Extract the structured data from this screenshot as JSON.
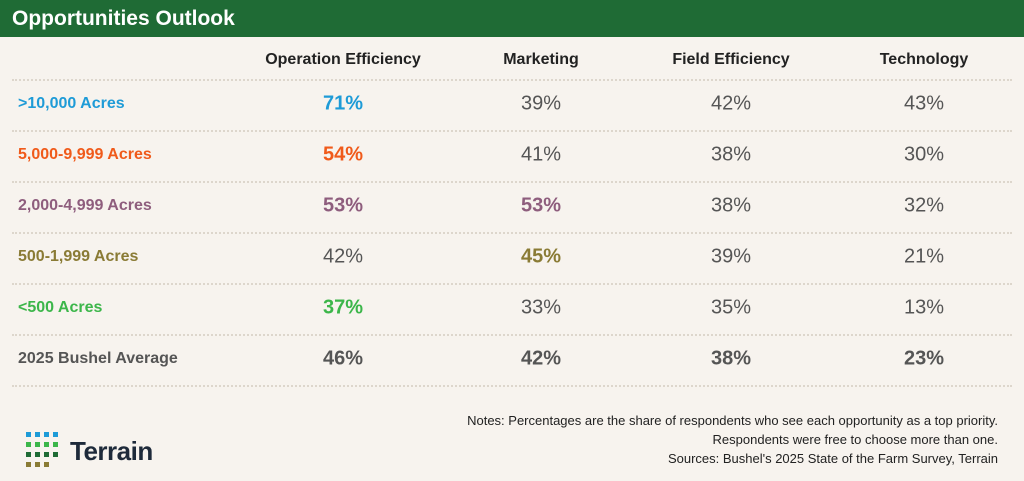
{
  "header": {
    "title": "Opportunities Outlook"
  },
  "table": {
    "columns": [
      "Operation Efficiency",
      "Marketing",
      "Field Efficiency",
      "Technology"
    ],
    "rows": [
      {
        "label": "&gt;10,000 Acres",
        "color": "#1e9bd7",
        "cells": [
          "71%",
          "39%",
          "42%",
          "43%"
        ],
        "bold": [
          true,
          false,
          false,
          false
        ]
      },
      {
        "label": "5,000-9,999 Acres",
        "color": "#f05a1a",
        "cells": [
          "54%",
          "41%",
          "38%",
          "30%"
        ],
        "bold": [
          true,
          false,
          false,
          false
        ]
      },
      {
        "label": "2,000-4,999 Acres",
        "color": "#8e5d7d",
        "cells": [
          "53%",
          "53%",
          "38%",
          "32%"
        ],
        "bold": [
          true,
          true,
          false,
          false
        ]
      },
      {
        "label": "500-1,999 Acres",
        "color": "#8a7b35",
        "cells": [
          "42%",
          "45%",
          "39%",
          "21%"
        ],
        "bold": [
          false,
          true,
          false,
          false
        ]
      },
      {
        "label": "&lt;500 Acres",
        "color": "#3cb64a",
        "cells": [
          "37%",
          "33%",
          "35%",
          "13%"
        ],
        "bold": [
          true,
          false,
          false,
          false
        ]
      },
      {
        "label": "2025 Bushel Average",
        "color": "#555555",
        "cells": [
          "46%",
          "42%",
          "38%",
          "23%"
        ],
        "bold": [
          true,
          true,
          true,
          true
        ]
      }
    ]
  },
  "notes": [
    "Notes: Percentages are the share of respondents who see each opportunity as a top priority.",
    "Respondents were free to choose more than one.",
    "Sources: Bushel's 2025 State of the Farm Survey, Terrain"
  ],
  "logo": {
    "text": "Terrain"
  }
}
